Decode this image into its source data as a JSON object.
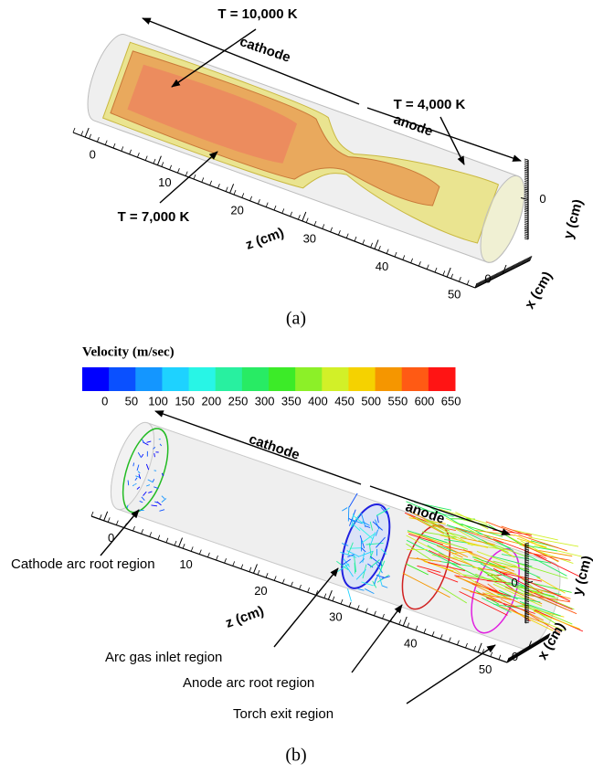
{
  "panel_a": {
    "caption": "(a)",
    "annotations": {
      "t_high": "T = 10,000 K",
      "cathode": "cathode",
      "t_low": "T = 4,000 K",
      "anode": "anode",
      "t_mid": "T = 7,000 K"
    },
    "z_axis": {
      "title": "z (cm)",
      "ticks": [
        0,
        10,
        20,
        30,
        40,
        50
      ]
    },
    "y_axis": {
      "title": "y (cm)",
      "ticks": [
        0
      ]
    },
    "x_axis": {
      "title": "x (cm)",
      "ticks": [
        0
      ]
    }
  },
  "panel_b": {
    "caption": "(b)",
    "colorbar": {
      "title": "Velocity (m/sec)",
      "ticks": [
        0,
        50,
        100,
        150,
        200,
        250,
        300,
        350,
        400,
        450,
        500,
        550,
        600,
        650
      ],
      "colors": [
        "#0000ff",
        "#0a50ff",
        "#1496ff",
        "#1ed2ff",
        "#28f5e6",
        "#28f0a0",
        "#28eb64",
        "#3ceb28",
        "#8cf028",
        "#d2f028",
        "#f5d200",
        "#f59600",
        "#ff5a14",
        "#ff1414"
      ]
    },
    "annotations": {
      "cathode": "cathode",
      "anode": "anode"
    },
    "regions": [
      "Cathode arc root region",
      "Arc gas inlet region",
      "Anode arc root region",
      "Torch exit region"
    ],
    "z_axis": {
      "title": "z (cm)",
      "ticks": [
        0,
        10,
        20,
        30,
        40,
        50
      ]
    },
    "y_axis": {
      "title": "y (cm)",
      "ticks": [
        0
      ]
    },
    "x_axis": {
      "title": "x (cm)",
      "ticks": [
        0
      ]
    }
  }
}
